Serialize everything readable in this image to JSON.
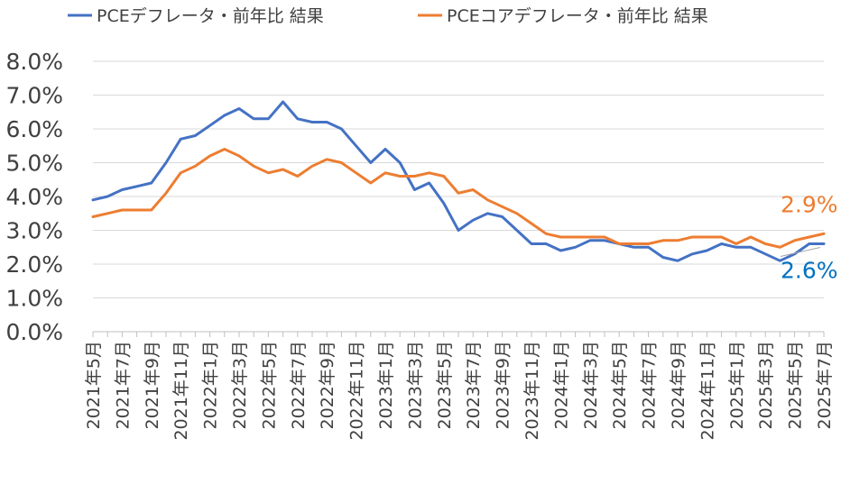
{
  "chart_data": {
    "type": "line",
    "title": "",
    "xlabel": "",
    "ylabel": "",
    "ylim": [
      0,
      8
    ],
    "yticks": [
      "0.0%",
      "1.0%",
      "2.0%",
      "3.0%",
      "4.0%",
      "5.0%",
      "6.0%",
      "7.0%",
      "8.0%"
    ],
    "grid": true,
    "legend_position": "top",
    "x": [
      "2021年5月",
      "2021年6月",
      "2021年7月",
      "2021年8月",
      "2021年9月",
      "2021年10月",
      "2021年11月",
      "2021年12月",
      "2022年1月",
      "2022年2月",
      "2022年3月",
      "2022年4月",
      "2022年5月",
      "2022年6月",
      "2022年7月",
      "2022年8月",
      "2022年9月",
      "2022年10月",
      "2022年11月",
      "2022年12月",
      "2023年1月",
      "2023年2月",
      "2023年3月",
      "2023年4月",
      "2023年5月",
      "2023年6月",
      "2023年7月",
      "2023年8月",
      "2023年9月",
      "2023年10月",
      "2023年11月",
      "2023年12月",
      "2024年1月",
      "2024年2月",
      "2024年3月",
      "2024年4月",
      "2024年5月",
      "2024年6月",
      "2024年7月",
      "2024年8月",
      "2024年9月",
      "2024年10月",
      "2024年11月",
      "2024年12月",
      "2025年1月",
      "2025年2月",
      "2025年3月",
      "2025年4月",
      "2025年5月",
      "2025年6月",
      "2025年7月"
    ],
    "xtick_labels": [
      "2021年5月",
      "2021年7月",
      "2021年9月",
      "2021年11月",
      "2022年1月",
      "2022年3月",
      "2022年5月",
      "2022年7月",
      "2022年9月",
      "2022年11月",
      "2023年1月",
      "2023年3月",
      "2023年5月",
      "2023年7月",
      "2023年9月",
      "2023年11月",
      "2024年1月",
      "2024年3月",
      "2024年5月",
      "2024年7月",
      "2024年9月",
      "2024年11月",
      "2025年1月",
      "2025年3月",
      "2025年5月",
      "2025年7月"
    ],
    "series": [
      {
        "name": "PCEデフレータ・前年比 結果",
        "color": "#4472c4",
        "values": [
          3.9,
          4.0,
          4.2,
          4.3,
          4.4,
          5.0,
          5.7,
          5.8,
          6.1,
          6.4,
          6.6,
          6.3,
          6.3,
          6.8,
          6.3,
          6.2,
          6.2,
          6.0,
          5.5,
          5.0,
          5.4,
          5.0,
          4.2,
          4.4,
          3.8,
          3.0,
          3.3,
          3.5,
          3.4,
          3.0,
          2.6,
          2.6,
          2.4,
          2.5,
          2.7,
          2.7,
          2.6,
          2.5,
          2.5,
          2.2,
          2.1,
          2.3,
          2.4,
          2.6,
          2.5,
          2.5,
          2.3,
          2.1,
          2.3,
          2.6,
          2.6
        ]
      },
      {
        "name": "PCEコアデフレータ・前年比 結果",
        "color": "#ed7d31",
        "values": [
          3.4,
          3.5,
          3.6,
          3.6,
          3.6,
          4.1,
          4.7,
          4.9,
          5.2,
          5.4,
          5.2,
          4.9,
          4.7,
          4.8,
          4.6,
          4.9,
          5.1,
          5.0,
          4.7,
          4.4,
          4.7,
          4.6,
          4.6,
          4.7,
          4.6,
          4.1,
          4.2,
          3.9,
          3.7,
          3.5,
          3.2,
          2.9,
          2.8,
          2.8,
          2.8,
          2.8,
          2.6,
          2.6,
          2.6,
          2.7,
          2.7,
          2.8,
          2.8,
          2.8,
          2.6,
          2.8,
          2.6,
          2.5,
          2.7,
          2.8,
          2.9
        ]
      }
    ],
    "annotations": [
      {
        "text": "2.9%",
        "series": 1,
        "color": "#ed7d31"
      },
      {
        "text": "2.6%",
        "series": 0,
        "color": "#0070c0"
      }
    ]
  }
}
